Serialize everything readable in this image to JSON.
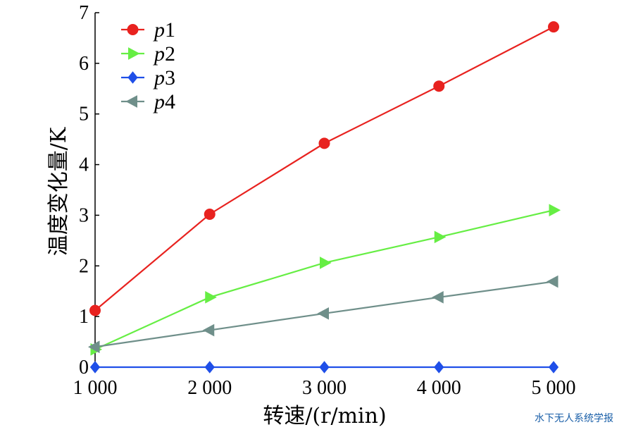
{
  "chart_data": {
    "type": "line",
    "title": "",
    "xlabel": "转速/(r/min)",
    "ylabel": "温度变化量/K",
    "x": [
      1000,
      2000,
      3000,
      4000,
      5000
    ],
    "x_tick_labels": [
      "1 000",
      "2 000",
      "3 000",
      "4 000",
      "5 000"
    ],
    "xlim": [
      1000,
      5000
    ],
    "ylim": [
      0,
      7
    ],
    "y_ticks": [
      0,
      1,
      2,
      3,
      4,
      5,
      6,
      7
    ],
    "grid": false,
    "legend_position": "top-left",
    "series": [
      {
        "name": "p1",
        "label_letter": "p",
        "label_index": "1",
        "color": "#e8221f",
        "marker": "circle",
        "values": [
          1.12,
          3.02,
          4.42,
          5.55,
          6.72
        ]
      },
      {
        "name": "p2",
        "label_letter": "p",
        "label_index": "2",
        "color": "#66ee44",
        "marker": "triangle-right",
        "values": [
          0.35,
          1.38,
          2.06,
          2.57,
          3.1
        ]
      },
      {
        "name": "p3",
        "label_letter": "p",
        "label_index": "3",
        "color": "#1f4fe8",
        "marker": "diamond",
        "values": [
          0.0,
          0.0,
          0.0,
          0.0,
          0.0
        ]
      },
      {
        "name": "p4",
        "label_letter": "p",
        "label_index": "4",
        "color": "#6f8f8a",
        "marker": "triangle-left",
        "values": [
          0.4,
          0.73,
          1.06,
          1.38,
          1.69
        ]
      }
    ]
  },
  "watermark": "水下无人系统学报"
}
